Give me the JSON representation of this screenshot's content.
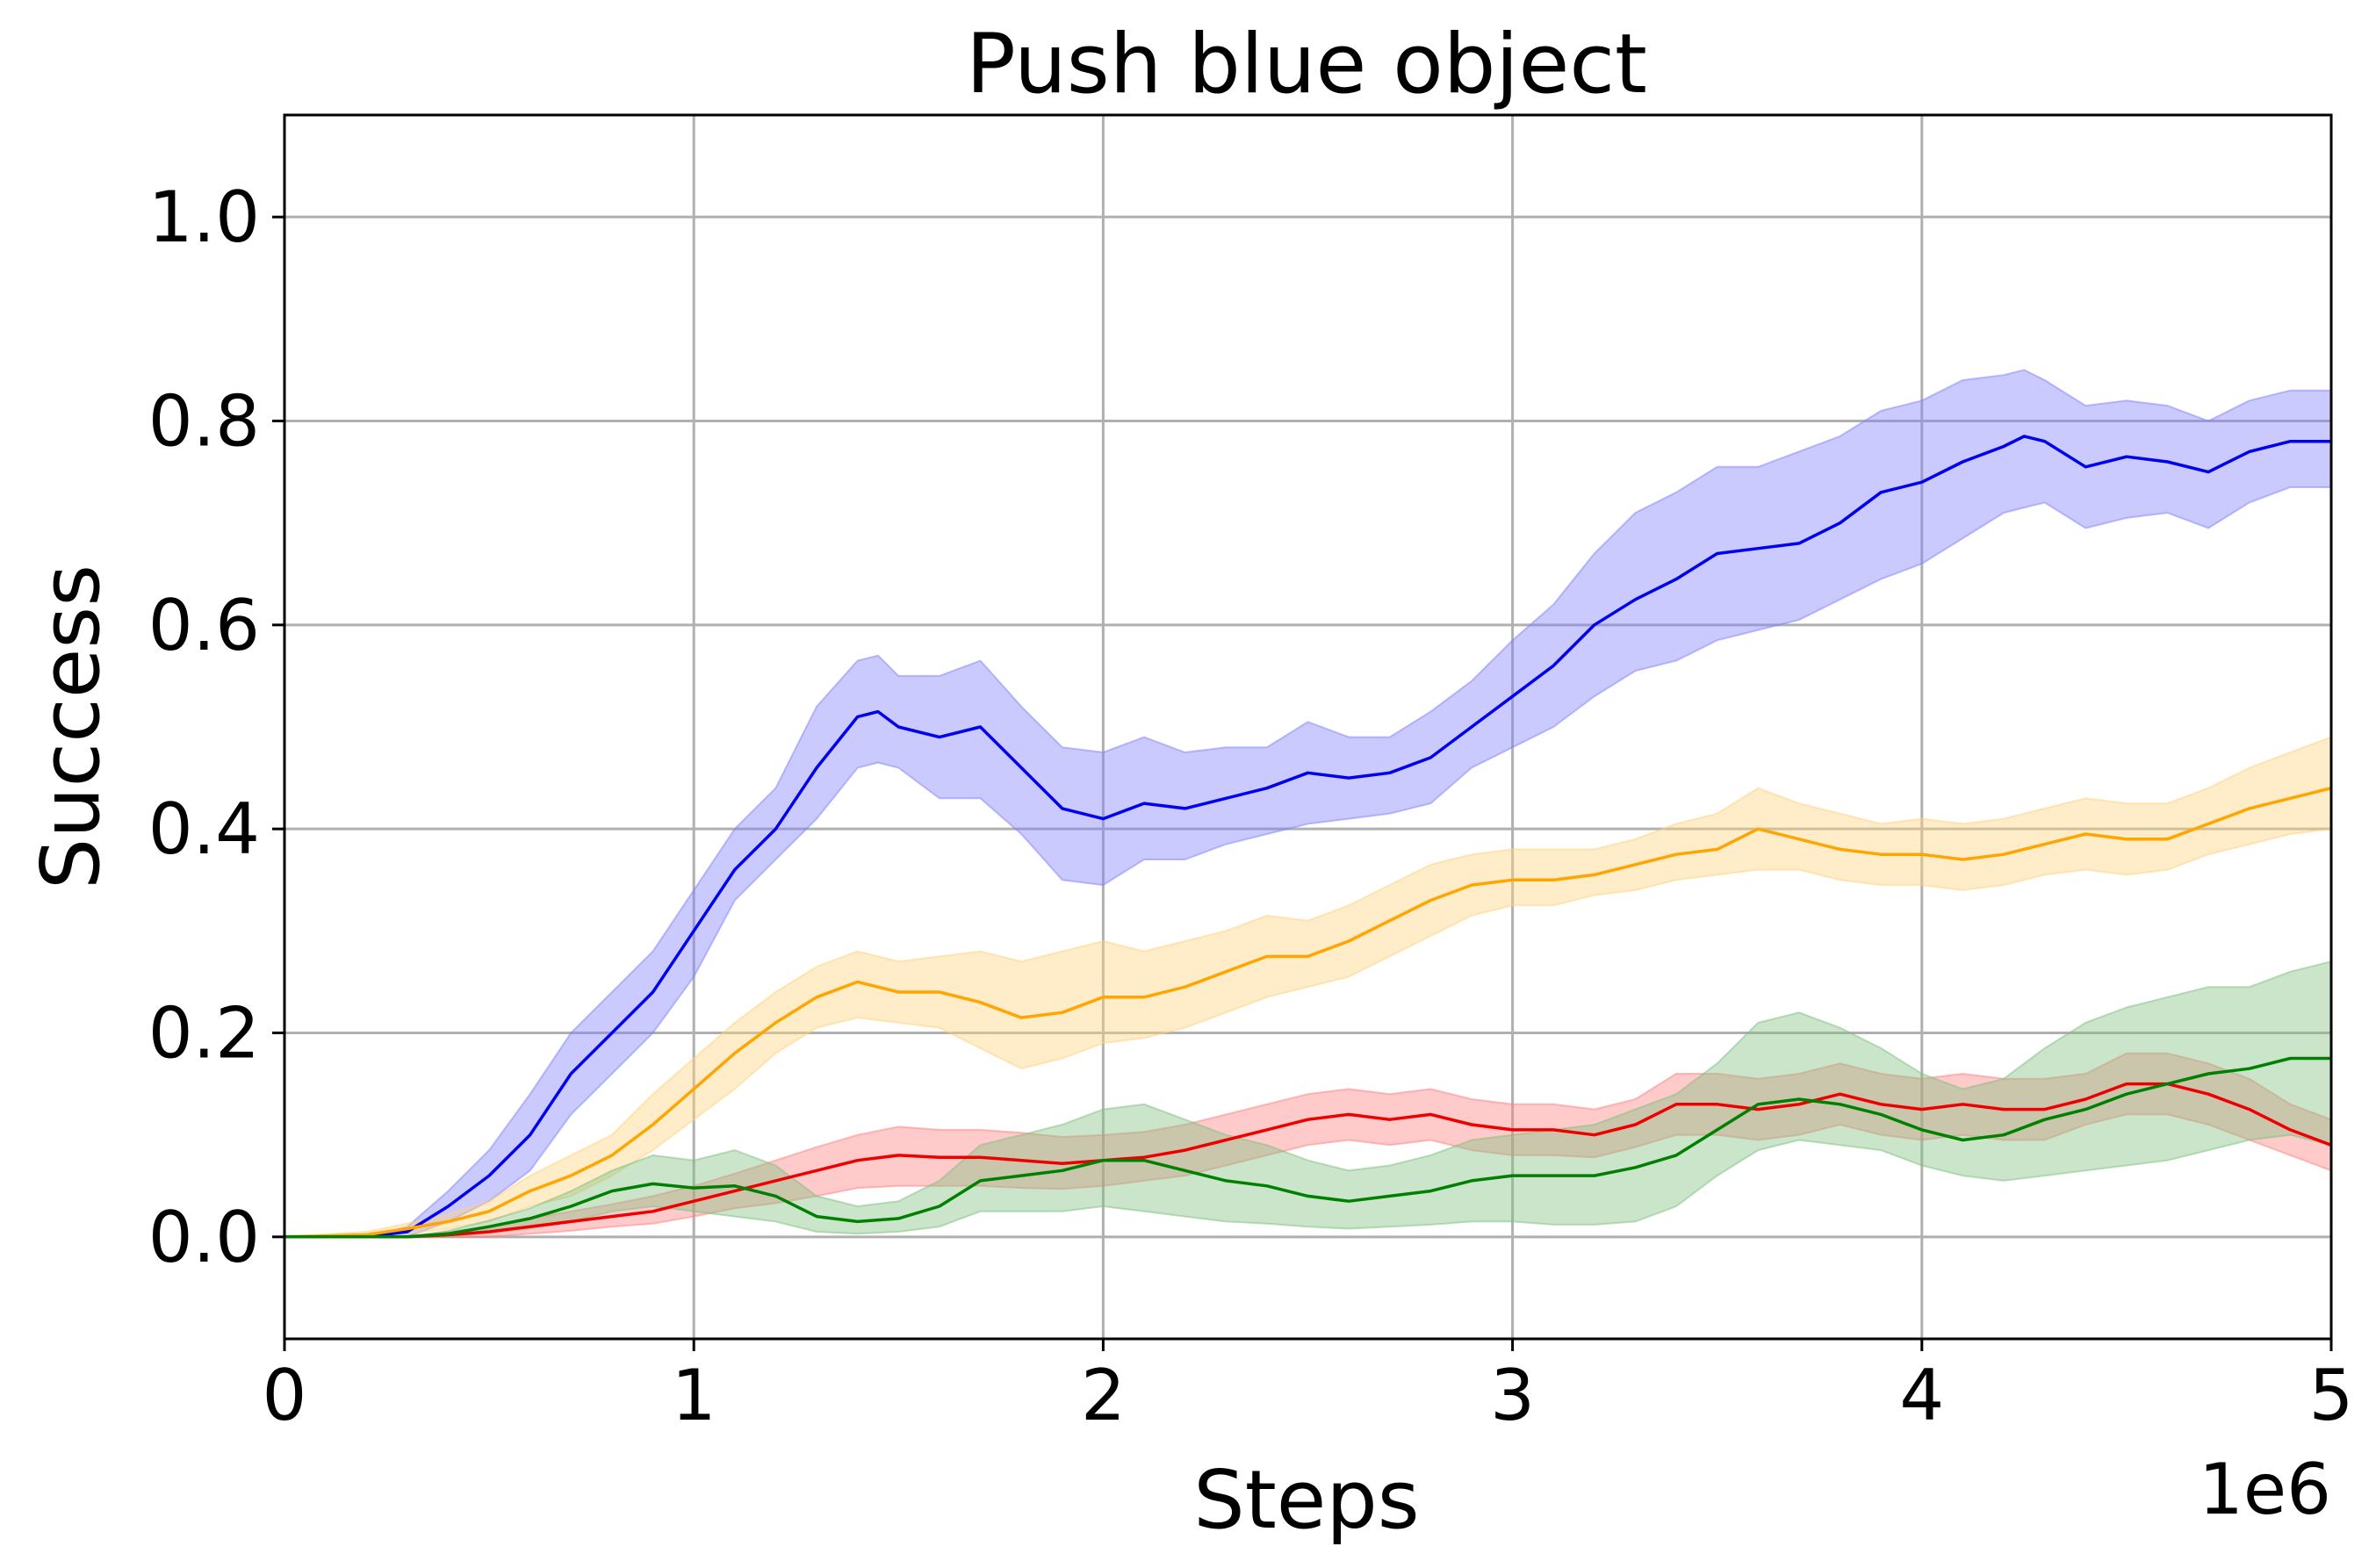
{
  "chart_data": {
    "type": "line",
    "title": "Push blue object",
    "xlabel": "Steps",
    "ylabel": "Success",
    "x_offset_label": "1e6",
    "xlim": [
      0,
      5
    ],
    "ylim": [
      -0.1,
      1.1
    ],
    "xticks": [
      0,
      1,
      2,
      3,
      4,
      5
    ],
    "xtick_labels": [
      "0",
      "1",
      "2",
      "3",
      "4",
      "5"
    ],
    "yticks": [
      0.0,
      0.2,
      0.4,
      0.6,
      0.8,
      1.0
    ],
    "ytick_labels": [
      "0.0",
      "0.2",
      "0.4",
      "0.6",
      "0.8",
      "1.0"
    ],
    "grid": true,
    "legend": "none",
    "series": [
      {
        "color": "#0000ee",
        "band_color": "#8080ff",
        "x": [
          0,
          0.2,
          0.3,
          0.4,
          0.5,
          0.6,
          0.7,
          0.8,
          0.9,
          1.0,
          1.1,
          1.2,
          1.3,
          1.4,
          1.45,
          1.5,
          1.6,
          1.7,
          1.8,
          1.9,
          2.0,
          2.1,
          2.2,
          2.3,
          2.4,
          2.5,
          2.6,
          2.7,
          2.8,
          2.9,
          3.0,
          3.1,
          3.2,
          3.3,
          3.4,
          3.5,
          3.6,
          3.7,
          3.8,
          3.9,
          4.0,
          4.1,
          4.2,
          4.25,
          4.3,
          4.4,
          4.5,
          4.6,
          4.7,
          4.8,
          4.9,
          5.0
        ],
        "y": [
          0,
          0,
          0.005,
          0.03,
          0.06,
          0.1,
          0.16,
          0.2,
          0.24,
          0.3,
          0.36,
          0.4,
          0.46,
          0.51,
          0.515,
          0.5,
          0.49,
          0.5,
          0.46,
          0.42,
          0.41,
          0.425,
          0.42,
          0.43,
          0.44,
          0.455,
          0.45,
          0.455,
          0.47,
          0.5,
          0.53,
          0.56,
          0.6,
          0.625,
          0.645,
          0.67,
          0.675,
          0.68,
          0.7,
          0.73,
          0.74,
          0.76,
          0.775,
          0.785,
          0.78,
          0.755,
          0.765,
          0.76,
          0.75,
          0.77,
          0.78,
          0.78
        ],
        "lower": [
          0,
          0,
          0,
          0.015,
          0.035,
          0.065,
          0.12,
          0.16,
          0.2,
          0.255,
          0.33,
          0.37,
          0.41,
          0.46,
          0.465,
          0.46,
          0.43,
          0.43,
          0.395,
          0.35,
          0.345,
          0.37,
          0.37,
          0.385,
          0.395,
          0.405,
          0.41,
          0.415,
          0.425,
          0.46,
          0.48,
          0.5,
          0.53,
          0.555,
          0.565,
          0.585,
          0.595,
          0.605,
          0.625,
          0.645,
          0.66,
          0.685,
          0.71,
          0.715,
          0.72,
          0.695,
          0.705,
          0.71,
          0.695,
          0.72,
          0.735,
          0.735
        ],
        "upper": [
          0,
          0,
          0.01,
          0.045,
          0.085,
          0.14,
          0.2,
          0.24,
          0.28,
          0.34,
          0.4,
          0.44,
          0.52,
          0.565,
          0.57,
          0.55,
          0.55,
          0.565,
          0.52,
          0.48,
          0.475,
          0.49,
          0.475,
          0.48,
          0.48,
          0.505,
          0.49,
          0.49,
          0.515,
          0.545,
          0.585,
          0.62,
          0.67,
          0.71,
          0.73,
          0.755,
          0.755,
          0.77,
          0.785,
          0.81,
          0.82,
          0.84,
          0.845,
          0.85,
          0.84,
          0.815,
          0.82,
          0.815,
          0.8,
          0.82,
          0.83,
          0.83
        ]
      },
      {
        "color": "#ffa500",
        "band_color": "#ffd27f",
        "x": [
          0,
          0.2,
          0.3,
          0.4,
          0.5,
          0.6,
          0.7,
          0.8,
          0.9,
          1.0,
          1.1,
          1.2,
          1.3,
          1.4,
          1.5,
          1.6,
          1.7,
          1.8,
          1.9,
          2.0,
          2.1,
          2.2,
          2.3,
          2.4,
          2.5,
          2.6,
          2.7,
          2.8,
          2.9,
          3.0,
          3.1,
          3.2,
          3.3,
          3.4,
          3.5,
          3.6,
          3.7,
          3.8,
          3.9,
          4.0,
          4.1,
          4.2,
          4.3,
          4.4,
          4.5,
          4.6,
          4.7,
          4.8,
          4.9,
          5.0
        ],
        "y": [
          0,
          0.002,
          0.008,
          0.015,
          0.025,
          0.045,
          0.06,
          0.08,
          0.11,
          0.145,
          0.18,
          0.21,
          0.235,
          0.25,
          0.24,
          0.24,
          0.23,
          0.215,
          0.22,
          0.235,
          0.235,
          0.245,
          0.26,
          0.275,
          0.275,
          0.29,
          0.31,
          0.33,
          0.345,
          0.35,
          0.35,
          0.355,
          0.365,
          0.375,
          0.38,
          0.4,
          0.39,
          0.38,
          0.375,
          0.375,
          0.37,
          0.375,
          0.385,
          0.395,
          0.39,
          0.39,
          0.405,
          0.42,
          0.43,
          0.44
        ],
        "lower": [
          0,
          0,
          0.003,
          0.008,
          0.015,
          0.03,
          0.04,
          0.06,
          0.085,
          0.115,
          0.145,
          0.18,
          0.205,
          0.215,
          0.21,
          0.205,
          0.185,
          0.165,
          0.175,
          0.19,
          0.195,
          0.205,
          0.22,
          0.235,
          0.245,
          0.255,
          0.275,
          0.295,
          0.315,
          0.325,
          0.325,
          0.335,
          0.34,
          0.35,
          0.355,
          0.36,
          0.36,
          0.35,
          0.345,
          0.345,
          0.34,
          0.345,
          0.355,
          0.36,
          0.355,
          0.36,
          0.375,
          0.385,
          0.395,
          0.4
        ],
        "upper": [
          0,
          0.005,
          0.013,
          0.022,
          0.035,
          0.06,
          0.08,
          0.1,
          0.14,
          0.175,
          0.21,
          0.24,
          0.265,
          0.28,
          0.27,
          0.275,
          0.28,
          0.27,
          0.28,
          0.29,
          0.28,
          0.29,
          0.3,
          0.315,
          0.31,
          0.325,
          0.345,
          0.365,
          0.375,
          0.38,
          0.38,
          0.38,
          0.39,
          0.405,
          0.415,
          0.44,
          0.425,
          0.415,
          0.405,
          0.41,
          0.405,
          0.41,
          0.42,
          0.43,
          0.425,
          0.425,
          0.44,
          0.46,
          0.475,
          0.49
        ]
      },
      {
        "color": "#ee0000",
        "band_color": "#ff8080",
        "x": [
          0,
          0.3,
          0.4,
          0.5,
          0.6,
          0.7,
          0.8,
          0.9,
          1.0,
          1.1,
          1.2,
          1.3,
          1.4,
          1.5,
          1.6,
          1.7,
          1.8,
          1.9,
          2.0,
          2.1,
          2.2,
          2.3,
          2.4,
          2.5,
          2.6,
          2.7,
          2.8,
          2.9,
          3.0,
          3.1,
          3.2,
          3.3,
          3.4,
          3.5,
          3.6,
          3.7,
          3.8,
          3.9,
          4.0,
          4.1,
          4.2,
          4.3,
          4.4,
          4.5,
          4.6,
          4.7,
          4.8,
          4.9,
          5.0
        ],
        "y": [
          0,
          0,
          0.002,
          0.005,
          0.01,
          0.015,
          0.02,
          0.025,
          0.035,
          0.045,
          0.055,
          0.065,
          0.075,
          0.08,
          0.078,
          0.078,
          0.075,
          0.072,
          0.075,
          0.078,
          0.085,
          0.095,
          0.105,
          0.115,
          0.12,
          0.115,
          0.12,
          0.11,
          0.105,
          0.105,
          0.1,
          0.11,
          0.13,
          0.13,
          0.125,
          0.13,
          0.14,
          0.13,
          0.125,
          0.13,
          0.125,
          0.125,
          0.135,
          0.15,
          0.15,
          0.14,
          0.125,
          0.105,
          0.09
        ],
        "lower": [
          0,
          0,
          0,
          0,
          0.003,
          0.006,
          0.01,
          0.013,
          0.02,
          0.028,
          0.033,
          0.04,
          0.048,
          0.05,
          0.05,
          0.05,
          0.048,
          0.047,
          0.05,
          0.055,
          0.06,
          0.07,
          0.08,
          0.09,
          0.095,
          0.09,
          0.095,
          0.085,
          0.08,
          0.08,
          0.078,
          0.088,
          0.1,
          0.1,
          0.095,
          0.1,
          0.11,
          0.1,
          0.095,
          0.1,
          0.095,
          0.095,
          0.11,
          0.12,
          0.12,
          0.11,
          0.095,
          0.08,
          0.065
        ],
        "upper": [
          0,
          0,
          0.005,
          0.01,
          0.018,
          0.025,
          0.032,
          0.04,
          0.05,
          0.062,
          0.075,
          0.088,
          0.1,
          0.108,
          0.105,
          0.105,
          0.102,
          0.098,
          0.1,
          0.103,
          0.11,
          0.12,
          0.13,
          0.14,
          0.145,
          0.14,
          0.145,
          0.135,
          0.13,
          0.13,
          0.125,
          0.135,
          0.16,
          0.16,
          0.155,
          0.16,
          0.17,
          0.16,
          0.155,
          0.16,
          0.155,
          0.155,
          0.16,
          0.18,
          0.18,
          0.17,
          0.155,
          0.13,
          0.115
        ]
      },
      {
        "color": "#008000",
        "band_color": "#80c080",
        "x": [
          0,
          0.3,
          0.4,
          0.5,
          0.6,
          0.7,
          0.8,
          0.9,
          1.0,
          1.1,
          1.2,
          1.3,
          1.4,
          1.5,
          1.6,
          1.7,
          1.8,
          1.9,
          2.0,
          2.1,
          2.2,
          2.3,
          2.4,
          2.5,
          2.6,
          2.7,
          2.8,
          2.9,
          3.0,
          3.1,
          3.2,
          3.3,
          3.4,
          3.5,
          3.6,
          3.7,
          3.8,
          3.9,
          4.0,
          4.1,
          4.2,
          4.3,
          4.4,
          4.5,
          4.6,
          4.7,
          4.8,
          4.9,
          5.0
        ],
        "y": [
          0,
          0,
          0.003,
          0.01,
          0.018,
          0.03,
          0.045,
          0.052,
          0.048,
          0.05,
          0.04,
          0.02,
          0.015,
          0.018,
          0.03,
          0.055,
          0.06,
          0.065,
          0.075,
          0.075,
          0.065,
          0.055,
          0.05,
          0.04,
          0.035,
          0.04,
          0.045,
          0.055,
          0.06,
          0.06,
          0.06,
          0.068,
          0.08,
          0.105,
          0.13,
          0.135,
          0.13,
          0.12,
          0.105,
          0.095,
          0.1,
          0.115,
          0.125,
          0.14,
          0.15,
          0.16,
          0.165,
          0.175,
          0.175
        ],
        "lower": [
          0,
          0,
          0,
          0.004,
          0.008,
          0.015,
          0.025,
          0.03,
          0.025,
          0.02,
          0.015,
          0.005,
          0.003,
          0.005,
          0.01,
          0.025,
          0.025,
          0.025,
          0.03,
          0.025,
          0.02,
          0.015,
          0.013,
          0.01,
          0.008,
          0.01,
          0.012,
          0.015,
          0.015,
          0.012,
          0.012,
          0.015,
          0.03,
          0.06,
          0.085,
          0.095,
          0.09,
          0.085,
          0.07,
          0.06,
          0.055,
          0.06,
          0.065,
          0.07,
          0.075,
          0.085,
          0.095,
          0.1,
          0.09
        ],
        "upper": [
          0,
          0,
          0.006,
          0.016,
          0.028,
          0.045,
          0.065,
          0.08,
          0.075,
          0.085,
          0.07,
          0.04,
          0.03,
          0.035,
          0.055,
          0.09,
          0.1,
          0.11,
          0.125,
          0.13,
          0.115,
          0.1,
          0.09,
          0.075,
          0.065,
          0.07,
          0.08,
          0.095,
          0.1,
          0.105,
          0.11,
          0.125,
          0.14,
          0.17,
          0.21,
          0.22,
          0.205,
          0.185,
          0.16,
          0.145,
          0.155,
          0.185,
          0.21,
          0.225,
          0.235,
          0.245,
          0.245,
          0.26,
          0.27
        ]
      }
    ]
  }
}
